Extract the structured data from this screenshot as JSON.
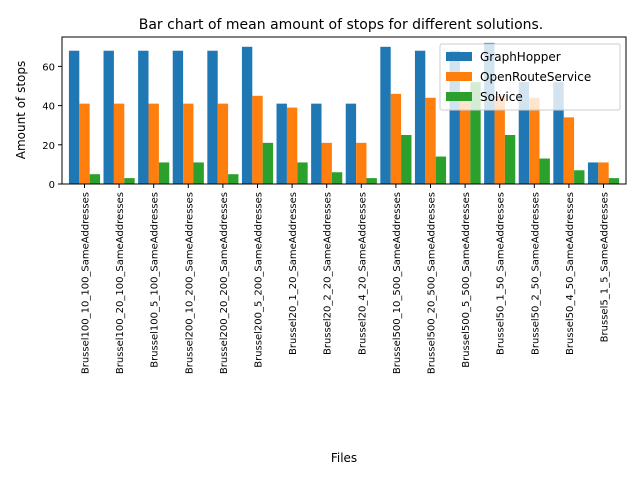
{
  "chart_data": {
    "type": "bar",
    "title": "Bar chart of mean amount of stops for different solutions.",
    "xlabel": "Files",
    "ylabel": "Amount of stops",
    "ylim": [
      0,
      75
    ],
    "yticks": [
      0,
      20,
      40,
      60
    ],
    "grid": false,
    "legend_position": "top-right",
    "categories": [
      "Brussel100_10_100_SameAddresses",
      "Brussel100_20_100_SameAddresses",
      "Brussel100_5_100_SameAddresses",
      "Brussel200_10_200_SameAddresses",
      "Brussel200_20_200_SameAddresses",
      "Brussel200_5_200_SameAddresses",
      "Brussel20_1_20_SameAddresses",
      "Brussel20_2_20_SameAddresses",
      "Brussel20_4_20_SameAddresses",
      "Brussel500_10_500_SameAddresses",
      "Brussel500_20_500_SameAddresses",
      "Brussel500_5_500_SameAddresses",
      "Brussel50_1_50_SameAddresses",
      "Brussel50_2_50_SameAddresses",
      "Brussel50_4_50_SameAddresses",
      "Brussel5_1_5_SameAddresses"
    ],
    "series": [
      {
        "name": "GraphHopper",
        "color": "#1f77b4",
        "values": [
          68,
          68,
          68,
          68,
          68,
          70,
          41,
          41,
          41,
          70,
          68,
          68,
          72,
          52,
          52,
          11
        ]
      },
      {
        "name": "OpenRouteService",
        "color": "#ff7f0e",
        "values": [
          41,
          41,
          41,
          41,
          41,
          45,
          39,
          21,
          21,
          46,
          44,
          44,
          45,
          44,
          34,
          11
        ]
      },
      {
        "name": "Solvice",
        "color": "#2ca02c",
        "values": [
          5,
          3,
          11,
          11,
          5,
          21,
          11,
          6,
          3,
          25,
          14,
          52,
          25,
          13,
          7,
          3
        ]
      }
    ]
  }
}
